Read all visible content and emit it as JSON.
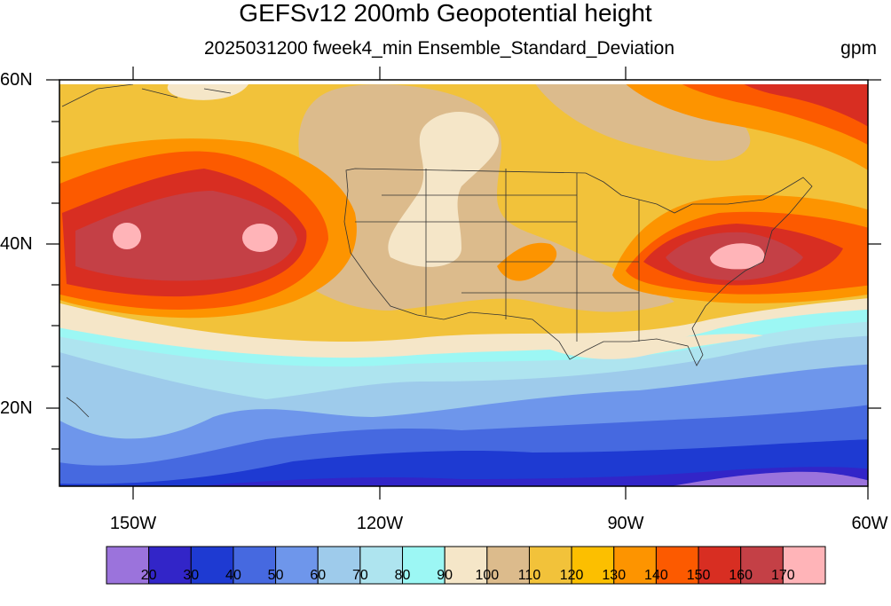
{
  "title": "GEFSv12 200mb Geopotential height",
  "subtitle": "2025031200 fweek4_min Ensemble_Standard_Deviation",
  "units": "gpm",
  "lat_labels": [
    "60N",
    "40N",
    "20N"
  ],
  "lon_labels": [
    "150W",
    "120W",
    "90W",
    "60W"
  ],
  "colorbar": {
    "colors": [
      "#9b73dc",
      "#3225c8",
      "#1e3ad2",
      "#4669e0",
      "#6e96eb",
      "#9ecbeb",
      "#aee4ef",
      "#9cf7f4",
      "#f5e6c8",
      "#dcbb8c",
      "#f2c23a",
      "#fcbf00",
      "#fd9400",
      "#fc5a00",
      "#d82e22",
      "#c44046",
      "#ffb4b8"
    ],
    "labels": [
      "20",
      "30",
      "40",
      "50",
      "60",
      "70",
      "80",
      "90",
      "100",
      "110",
      "120",
      "130",
      "140",
      "150",
      "160",
      "170"
    ]
  },
  "chart_data": {
    "type": "heatmap",
    "title": "GEFSv12 200mb Geopotential height",
    "subtitle": "2025031200 fweek4_min Ensemble_Standard_Deviation",
    "units": "gpm",
    "lon_range": [
      -160,
      -60
    ],
    "lat_range": [
      10,
      60
    ],
    "levels": [
      20,
      30,
      40,
      50,
      60,
      70,
      80,
      90,
      100,
      110,
      120,
      130,
      140,
      150,
      160,
      170
    ],
    "maxima": [
      {
        "lon": -148,
        "lat": 41,
        "value": 170
      },
      {
        "lon": -135,
        "lat": 41,
        "value": 170
      },
      {
        "lon": -76,
        "lat": 39,
        "value": 170
      }
    ]
  }
}
